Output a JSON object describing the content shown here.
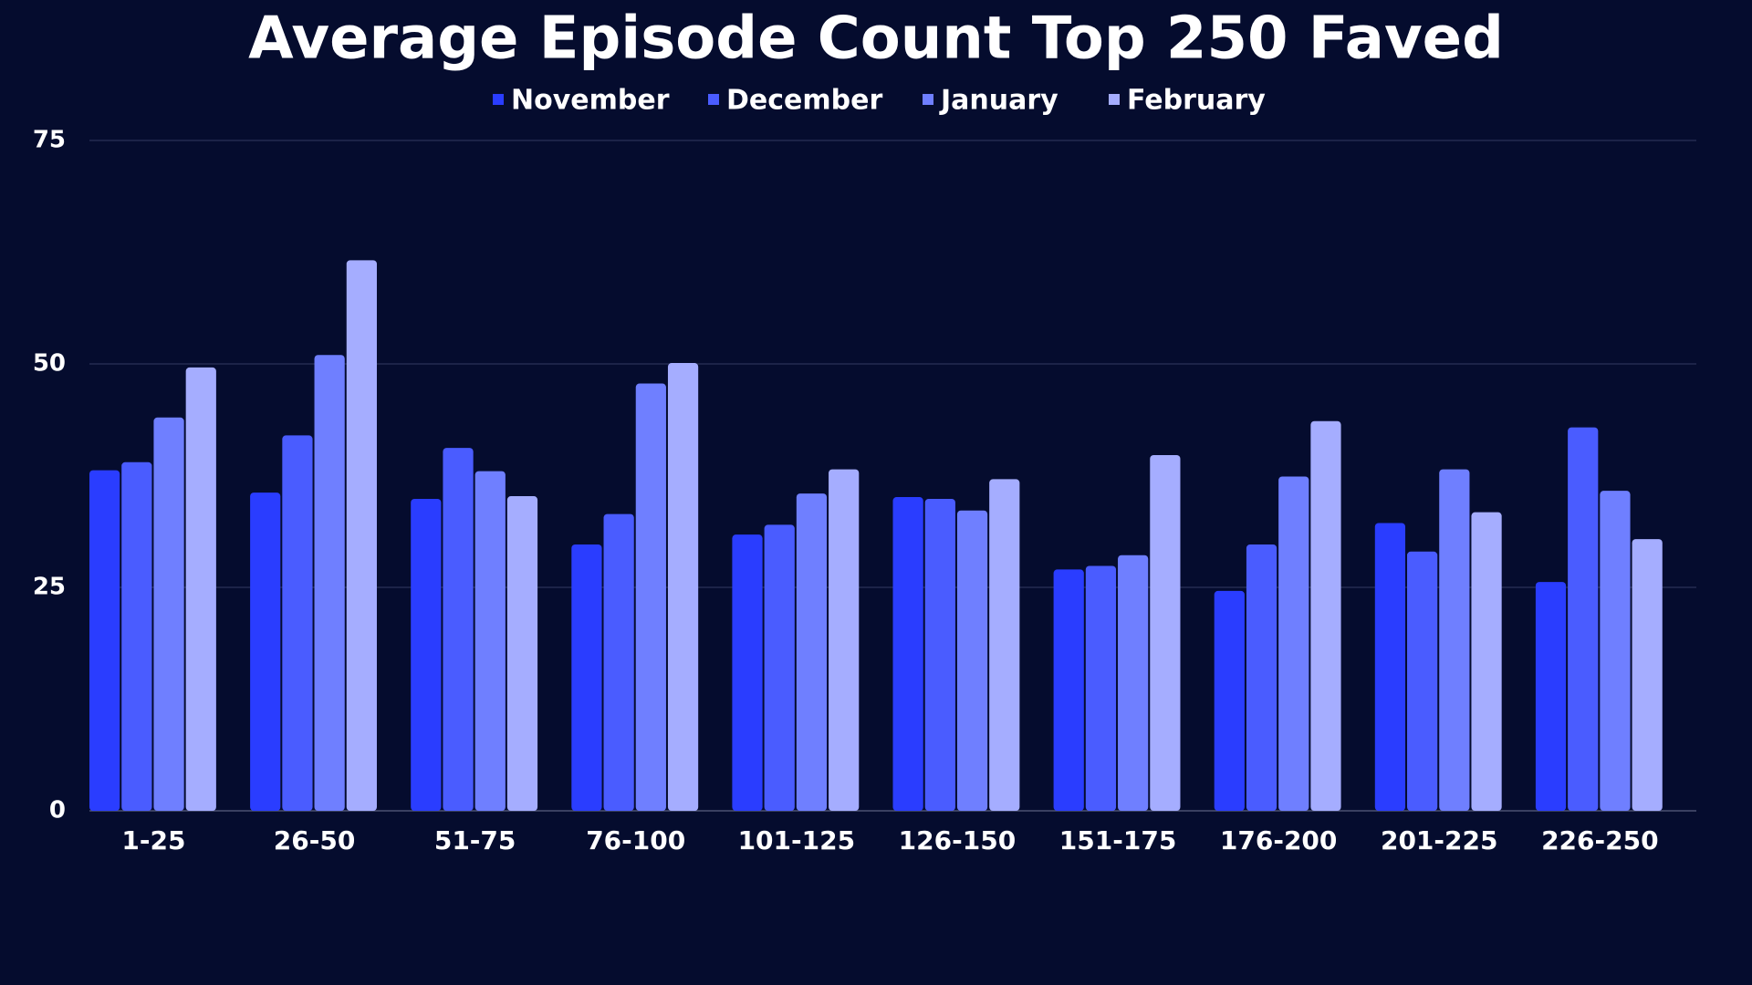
{
  "chart_data": {
    "type": "bar",
    "title": "Average Episode Count Top 250 Faved",
    "categories": [
      "1-25",
      "26-50",
      "51-75",
      "76-100",
      "101-125",
      "126-150",
      "151-175",
      "176-200",
      "201-225",
      "226-250"
    ],
    "series": [
      {
        "name": "November",
        "color": "#2a3dff",
        "values": [
          38.1,
          35.6,
          34.9,
          29.8,
          30.9,
          35.1,
          27,
          24.6,
          32.2,
          25.6
        ]
      },
      {
        "name": "December",
        "color": "#4a5cff",
        "values": [
          39,
          42,
          40.6,
          33.2,
          32,
          34.9,
          27.4,
          29.8,
          29,
          42.9
        ]
      },
      {
        "name": "January",
        "color": "#6f7fff",
        "values": [
          44,
          51,
          38,
          47.8,
          35.5,
          33.6,
          28.6,
          37.4,
          38.2,
          35.8
        ]
      },
      {
        "name": "February",
        "color": "#a5adff",
        "values": [
          49.6,
          61.6,
          35.2,
          50.1,
          38.2,
          37.1,
          39.8,
          43.6,
          33.4,
          30.4
        ]
      }
    ],
    "ylim": [
      0,
      75
    ],
    "yticks": [
      0,
      25,
      50,
      75
    ],
    "grid": true,
    "legend": "top"
  }
}
